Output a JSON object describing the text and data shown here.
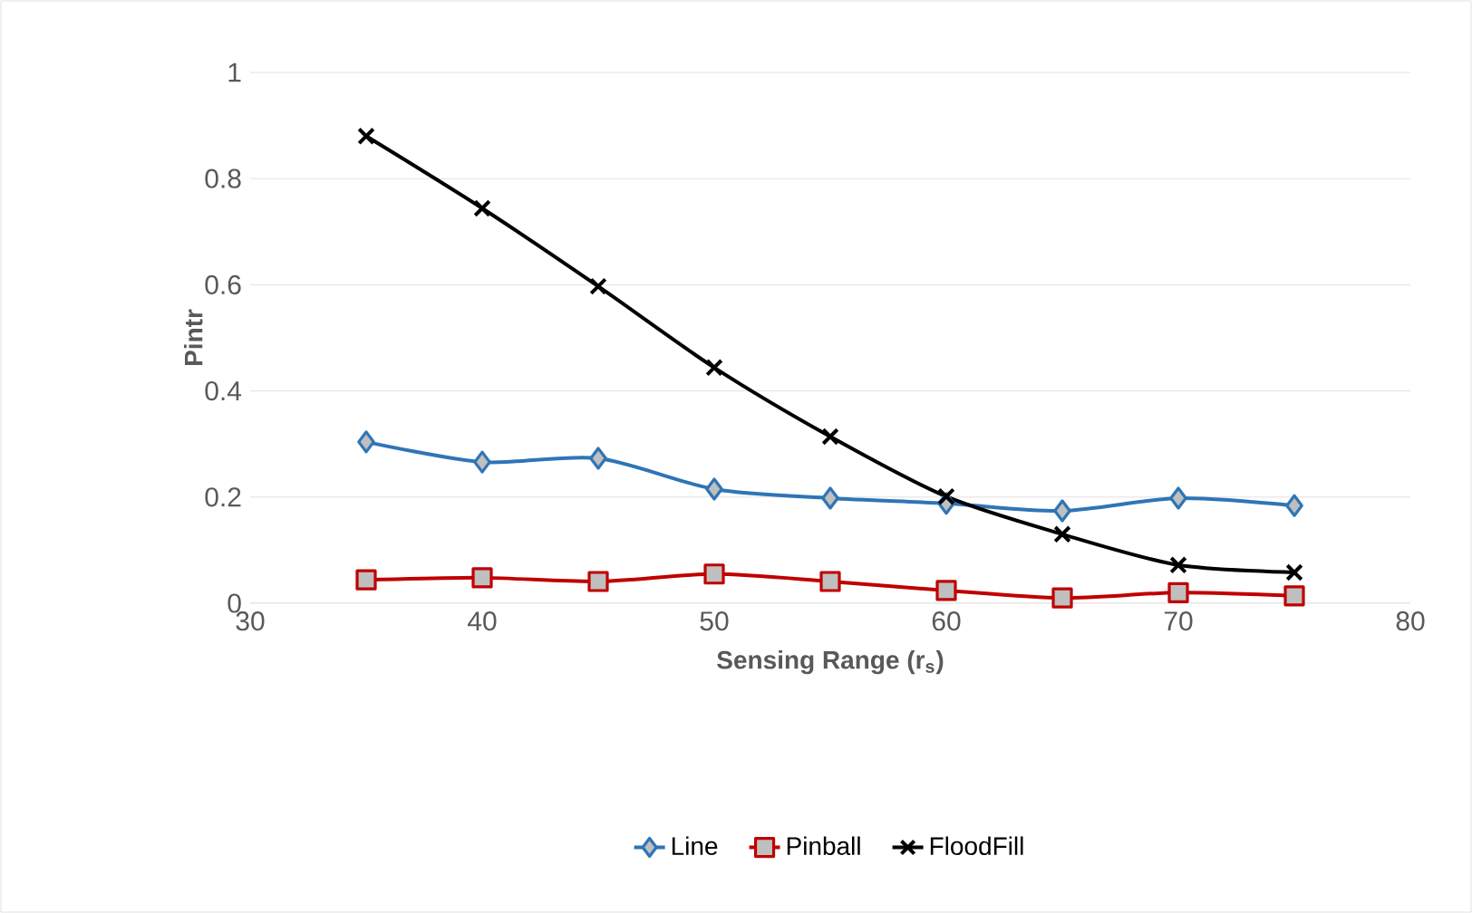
{
  "chart_data": {
    "type": "line",
    "xlabel": "Sensing Range (r$_{s}$)",
    "ylabel": "Pintr",
    "x": [
      35,
      40,
      45,
      50,
      55,
      60,
      65,
      70,
      75
    ],
    "series": [
      {
        "name": "Line",
        "color": "#2e75b6",
        "marker": "diamond",
        "values": [
          0.304,
          0.266,
          0.273,
          0.215,
          0.198,
          0.188,
          0.174,
          0.198,
          0.184
        ]
      },
      {
        "name": "Pinball",
        "color": "#c00000",
        "marker": "square",
        "values": [
          0.044,
          0.048,
          0.041,
          0.055,
          0.041,
          0.024,
          0.01,
          0.02,
          0.014
        ]
      },
      {
        "name": "FloodFill",
        "color": "#000000",
        "marker": "cross",
        "values": [
          0.88,
          0.744,
          0.597,
          0.444,
          0.314,
          0.201,
          0.13,
          0.072,
          0.058
        ]
      }
    ],
    "xlim": [
      30,
      80
    ],
    "xticks": [
      30,
      40,
      50,
      60,
      70,
      80
    ],
    "ylim": [
      0,
      1
    ],
    "yticks": [
      0,
      0.2,
      0.4,
      0.6,
      0.8,
      1
    ],
    "grid": "y",
    "legend": "bottom",
    "line_style": "solid"
  }
}
